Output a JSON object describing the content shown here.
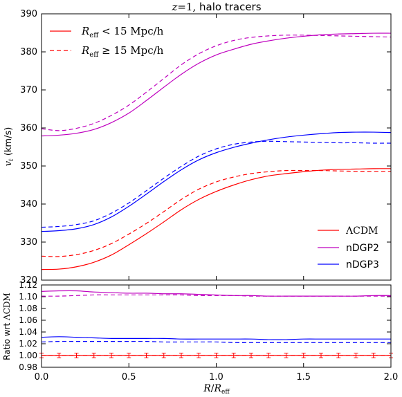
{
  "chart_data": [
    {
      "type": "line",
      "title": "z=1, halo tracers",
      "xlabel": "",
      "ylabel": "v_t (km/s)",
      "xlim": [
        0.0,
        2.0
      ],
      "ylim": [
        320,
        390
      ],
      "xticks": [
        "0.0",
        "0.5",
        "1.0",
        "1.5",
        "2.0"
      ],
      "yticks": [
        "320",
        "330",
        "340",
        "350",
        "360",
        "370",
        "380",
        "390"
      ],
      "x": [
        0.0,
        0.1,
        0.2,
        0.3,
        0.4,
        0.5,
        0.6,
        0.7,
        0.8,
        0.9,
        1.0,
        1.1,
        1.2,
        1.3,
        1.4,
        1.5,
        1.6,
        1.7,
        1.8,
        1.9,
        2.0
      ],
      "series": [
        {
          "name": "ΛCDM",
          "color": "#ff0000",
          "style": "solid",
          "values": [
            322.8,
            322.9,
            323.5,
            324.7,
            326.6,
            329.3,
            332.2,
            335.3,
            338.5,
            341.2,
            343.3,
            345.0,
            346.4,
            347.4,
            348.0,
            348.5,
            348.9,
            349.1,
            349.2,
            349.3,
            349.3
          ]
        },
        {
          "name": "",
          "color": "#ff0000",
          "style": "dashed",
          "values": [
            326.3,
            326.2,
            326.7,
            327.8,
            329.6,
            332.1,
            334.9,
            338.0,
            341.2,
            343.9,
            345.8,
            347.1,
            348.0,
            348.5,
            348.8,
            348.8,
            348.8,
            348.7,
            348.6,
            348.6,
            348.6
          ]
        },
        {
          "name": "nDGP2",
          "color": "#bf00bf",
          "style": "solid",
          "values": [
            357.9,
            358.1,
            358.6,
            359.6,
            361.4,
            363.9,
            367.2,
            370.7,
            374.1,
            377.0,
            379.2,
            380.7,
            382.0,
            382.9,
            383.6,
            384.1,
            384.5,
            384.7,
            384.8,
            384.9,
            384.9
          ]
        },
        {
          "name": "",
          "color": "#bf00bf",
          "style": "dashed",
          "values": [
            359.8,
            359.3,
            359.9,
            361.2,
            363.3,
            366.0,
            369.4,
            373.0,
            376.6,
            379.5,
            381.6,
            383.0,
            383.8,
            384.2,
            384.4,
            384.4,
            384.3,
            384.2,
            384.1,
            384.0,
            383.9
          ]
        },
        {
          "name": "nDGP3",
          "color": "#0000ff",
          "style": "solid",
          "values": [
            332.8,
            333.0,
            333.5,
            334.6,
            336.6,
            339.4,
            342.6,
            345.9,
            349.0,
            351.6,
            353.5,
            354.9,
            356.0,
            356.9,
            357.6,
            358.1,
            358.5,
            358.8,
            358.9,
            358.9,
            358.8
          ]
        },
        {
          "name": "",
          "color": "#0000ff",
          "style": "dashed",
          "values": [
            333.9,
            334.1,
            334.6,
            335.6,
            337.6,
            340.3,
            343.5,
            346.8,
            349.9,
            352.6,
            354.5,
            355.7,
            356.3,
            356.5,
            356.4,
            356.3,
            356.2,
            356.1,
            356.1,
            356.0,
            356.0
          ]
        }
      ],
      "legend_top": {
        "position": "upper-left",
        "entries": [
          {
            "label": "R_eff < 15 Mpc/h",
            "style": "solid",
            "color": "#ff0000"
          },
          {
            "label": "R_eff ≥ 15 Mpc/h",
            "style": "dashed",
            "color": "#ff0000"
          }
        ]
      },
      "legend_bottom": {
        "position": "lower-right",
        "entries": [
          {
            "label": "ΛCDM",
            "color": "#ff0000"
          },
          {
            "label": "nDGP2",
            "color": "#bf00bf"
          },
          {
            "label": "nDGP3",
            "color": "#0000ff"
          }
        ]
      }
    },
    {
      "type": "line",
      "title": "",
      "xlabel": "R/R_eff",
      "ylabel": "Ratio wrt ΛCDM",
      "xlim": [
        0.0,
        2.0
      ],
      "ylim": [
        0.98,
        1.12
      ],
      "xticks": [
        "0.0",
        "0.5",
        "1.0",
        "1.5",
        "2.0"
      ],
      "yticks": [
        "0.98",
        "1.00",
        "1.02",
        "1.04",
        "1.06",
        "1.08",
        "1.10",
        "1.12"
      ],
      "x": [
        0.0,
        0.1,
        0.2,
        0.3,
        0.4,
        0.5,
        0.6,
        0.7,
        0.8,
        0.9,
        1.0,
        1.1,
        1.2,
        1.3,
        1.4,
        1.5,
        1.6,
        1.7,
        1.8,
        1.9,
        2.0
      ],
      "series": [
        {
          "name": "",
          "color": "#bf00bf",
          "style": "solid",
          "values": [
            1.109,
            1.11,
            1.11,
            1.108,
            1.107,
            1.106,
            1.106,
            1.105,
            1.105,
            1.104,
            1.103,
            1.102,
            1.102,
            1.101,
            1.101,
            1.101,
            1.101,
            1.101,
            1.101,
            1.102,
            1.102
          ]
        },
        {
          "name": "",
          "color": "#bf00bf",
          "style": "dashed",
          "values": [
            1.101,
            1.101,
            1.102,
            1.103,
            1.103,
            1.103,
            1.103,
            1.103,
            1.103,
            1.102,
            1.102,
            1.102,
            1.101,
            1.101,
            1.101,
            1.101,
            1.101,
            1.101,
            1.101,
            1.101,
            1.101
          ]
        },
        {
          "name": "",
          "color": "#0000ff",
          "style": "solid",
          "values": [
            1.031,
            1.032,
            1.031,
            1.03,
            1.029,
            1.029,
            1.029,
            1.029,
            1.028,
            1.028,
            1.028,
            1.028,
            1.028,
            1.027,
            1.027,
            1.028,
            1.028,
            1.028,
            1.028,
            1.028,
            1.028
          ]
        },
        {
          "name": "",
          "color": "#0000ff",
          "style": "dashed",
          "values": [
            1.023,
            1.024,
            1.024,
            1.024,
            1.024,
            1.024,
            1.024,
            1.023,
            1.023,
            1.023,
            1.023,
            1.022,
            1.022,
            1.022,
            1.022,
            1.022,
            1.022,
            1.022,
            1.022,
            1.022,
            1.022
          ]
        },
        {
          "name": "",
          "color": "#ff0000",
          "style": "solid",
          "values": [
            1.0,
            1.0,
            1.0,
            1.0,
            1.0,
            1.0,
            1.0,
            1.0,
            1.0,
            1.0,
            1.0,
            1.0,
            1.0,
            1.0,
            1.0,
            1.0,
            1.0,
            1.0,
            1.0,
            1.0,
            1.0
          ]
        },
        {
          "name": "",
          "color": "#ff0000",
          "style": "dashed",
          "values": [
            1.0,
            1.0,
            1.0,
            1.0,
            1.0,
            1.0,
            1.0,
            1.0,
            1.0,
            1.0,
            1.0,
            1.0,
            1.0,
            1.0,
            1.0,
            1.0,
            1.0,
            1.0,
            1.0,
            1.0,
            1.0
          ]
        }
      ],
      "error_bars": {
        "color": "#ff0000",
        "x": [
          0.0,
          0.1,
          0.2,
          0.3,
          0.4,
          0.5,
          0.6,
          0.7,
          0.8,
          0.9,
          1.0,
          1.1,
          1.2,
          1.3,
          1.4,
          1.5,
          1.6,
          1.7,
          1.8,
          1.9,
          2.0
        ],
        "center": 1.0,
        "err": 0.004
      }
    }
  ]
}
